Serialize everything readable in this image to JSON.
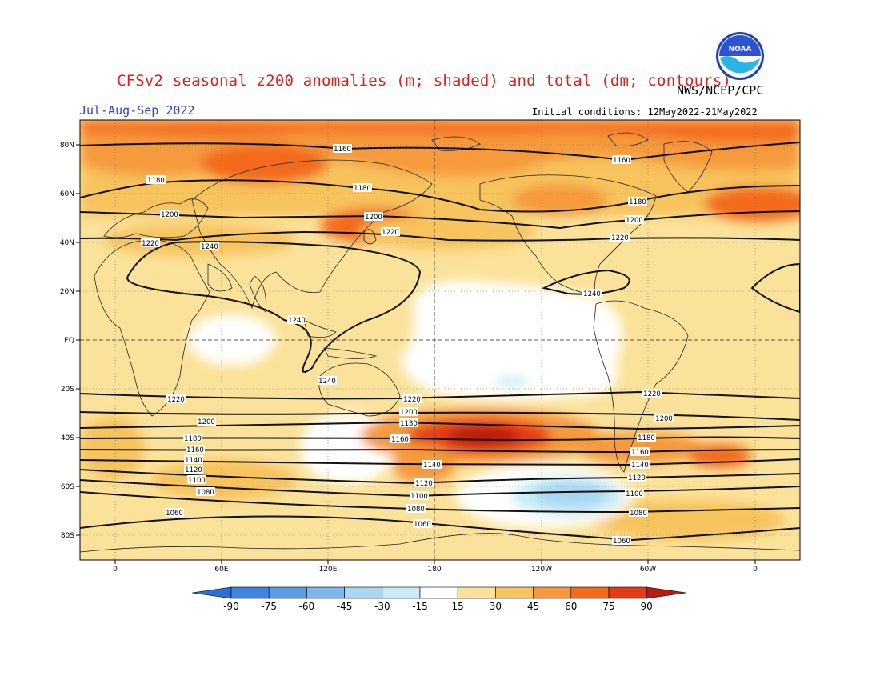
{
  "header": {
    "title": "CFSv2 seasonal z200 anomalies (m; shaded) and total (dm; contours)",
    "agency": "NWS/NCEP/CPC",
    "season": "Jul-Aug-Sep 2022",
    "initial_conditions": "Initial conditions: 12May2022-21May2022",
    "logo_text": "NOAA"
  },
  "map": {
    "lat_labels": [
      "80N",
      "60N",
      "40N",
      "20N",
      "EQ",
      "20S",
      "40S",
      "60S",
      "80S"
    ],
    "lon_labels": [
      "0",
      "60E",
      "120E",
      "180",
      "120W",
      "60W",
      "0"
    ],
    "projection": "cylindrical equidistant",
    "grid": "dotted",
    "highlighted_lines": [
      "EQ",
      "180"
    ]
  },
  "contour_labels": [
    {
      "text": "1160",
      "id": "c1160-n-a"
    },
    {
      "text": "1160",
      "id": "c1160-n-b"
    },
    {
      "text": "1180",
      "id": "c1180-n-a"
    },
    {
      "text": "1180",
      "id": "c1180-n-b"
    },
    {
      "text": "1180",
      "id": "c1180-n-c"
    },
    {
      "text": "1200",
      "id": "c1200-n-a"
    },
    {
      "text": "1200",
      "id": "c1200-n-b"
    },
    {
      "text": "1200",
      "id": "c1200-n-c"
    },
    {
      "text": "1220",
      "id": "c1220-n-a"
    },
    {
      "text": "1220",
      "id": "c1220-n-b"
    },
    {
      "text": "1220",
      "id": "c1220-n-c"
    },
    {
      "text": "1240",
      "id": "c1240-n-a"
    },
    {
      "text": "1240",
      "id": "c1240-n-b"
    },
    {
      "text": "1240",
      "id": "c1240-n-c"
    },
    {
      "text": "1240",
      "id": "c1240-n-d"
    },
    {
      "text": "1220",
      "id": "c1220-s-a"
    },
    {
      "text": "1220",
      "id": "c1220-s-b"
    },
    {
      "text": "1220",
      "id": "c1220-s-c"
    },
    {
      "text": "1200",
      "id": "c1200-s-a"
    },
    {
      "text": "1200",
      "id": "c1200-s-b"
    },
    {
      "text": "1200",
      "id": "c1200-s-c"
    },
    {
      "text": "1180",
      "id": "c1180-s-a"
    },
    {
      "text": "1180",
      "id": "c1180-s-b"
    },
    {
      "text": "1180",
      "id": "c1180-s-c"
    },
    {
      "text": "1160",
      "id": "c1160-s-a"
    },
    {
      "text": "1160",
      "id": "c1160-s-b"
    },
    {
      "text": "1160",
      "id": "c1160-s-c"
    },
    {
      "text": "1140",
      "id": "c1140-s-a"
    },
    {
      "text": "1140",
      "id": "c1140-s-b"
    },
    {
      "text": "1140",
      "id": "c1140-s-c"
    },
    {
      "text": "1120",
      "id": "c1120-s-a"
    },
    {
      "text": "1120",
      "id": "c1120-s-b"
    },
    {
      "text": "1120",
      "id": "c1120-s-c"
    },
    {
      "text": "1100",
      "id": "c1100-s-a"
    },
    {
      "text": "1100",
      "id": "c1100-s-b"
    },
    {
      "text": "1100",
      "id": "c1100-s-c"
    },
    {
      "text": "1080",
      "id": "c1080-s-a"
    },
    {
      "text": "1080",
      "id": "c1080-s-b"
    },
    {
      "text": "1080",
      "id": "c1080-s-c"
    },
    {
      "text": "1060",
      "id": "c1060-s-a"
    },
    {
      "text": "1060",
      "id": "c1060-s-b"
    },
    {
      "text": "1060",
      "id": "c1060-s-c"
    }
  ],
  "colorbar": {
    "labels": [
      "-90",
      "-75",
      "-60",
      "-45",
      "-30",
      "-15",
      "15",
      "30",
      "45",
      "60",
      "75",
      "90"
    ],
    "colors": [
      "#2b6fd6",
      "#3d85e0",
      "#5a9de6",
      "#7db7ee",
      "#a8d6f3",
      "#c7ecf5",
      "#ffffff",
      "#fbe29a",
      "#f7c35d",
      "#f59a3c",
      "#f36a1c",
      "#e53b12",
      "#b81c10"
    ]
  }
}
